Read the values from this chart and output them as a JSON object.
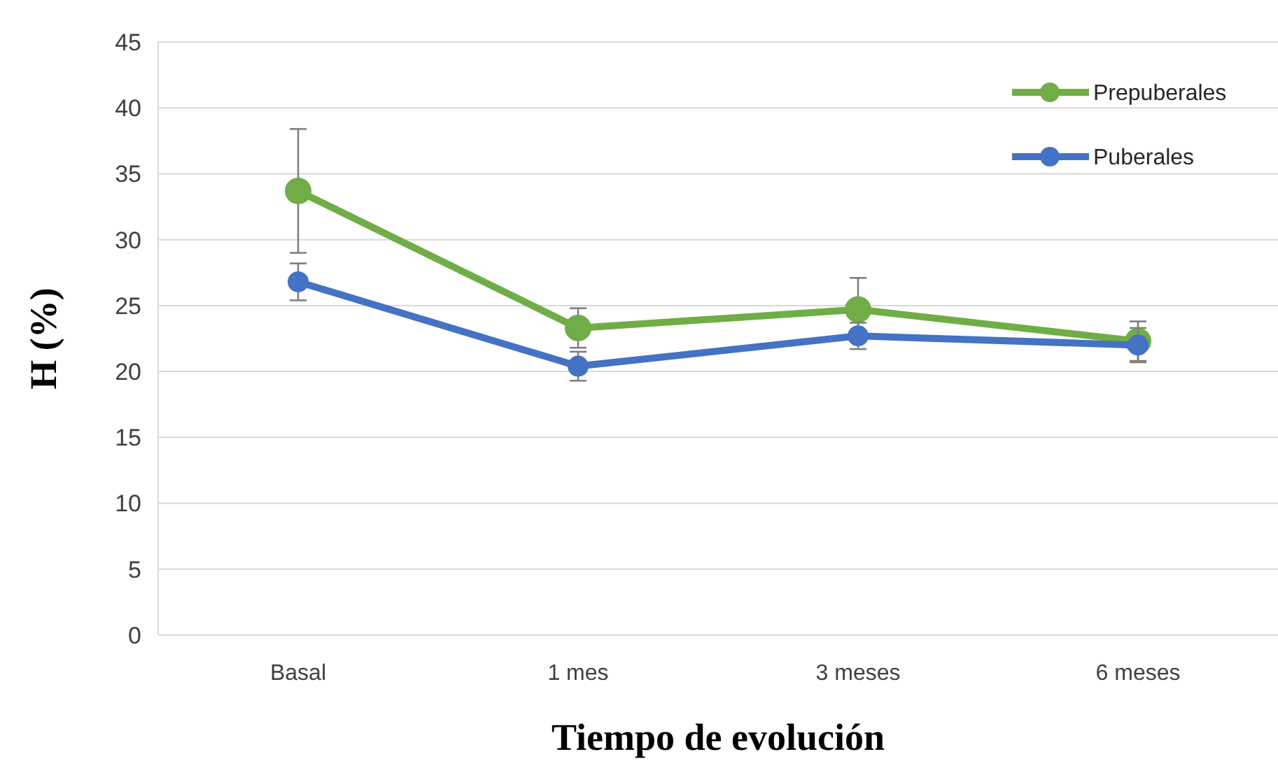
{
  "chart_data": {
    "type": "line",
    "xlabel": "Tiempo de evolución",
    "ylabel": "H (%)",
    "categories": [
      "Basal",
      "1 mes",
      "3 meses",
      "6 meses"
    ],
    "series": [
      {
        "name": "Prepuberales",
        "color": "#70ad47",
        "values": [
          33.7,
          23.3,
          24.7,
          22.3
        ],
        "errors": [
          4.7,
          1.5,
          2.4,
          1.5
        ]
      },
      {
        "name": "Puberales",
        "color": "#4472c4",
        "values": [
          26.8,
          20.4,
          22.7,
          22.0
        ],
        "errors": [
          1.4,
          1.1,
          1.0,
          1.3
        ]
      }
    ],
    "ylim": [
      0,
      45
    ],
    "yticks": [
      0,
      5,
      10,
      15,
      20,
      25,
      30,
      35,
      40,
      45
    ],
    "grid": "y",
    "legend": "top right",
    "marker": "circle",
    "line_style": "solid"
  }
}
